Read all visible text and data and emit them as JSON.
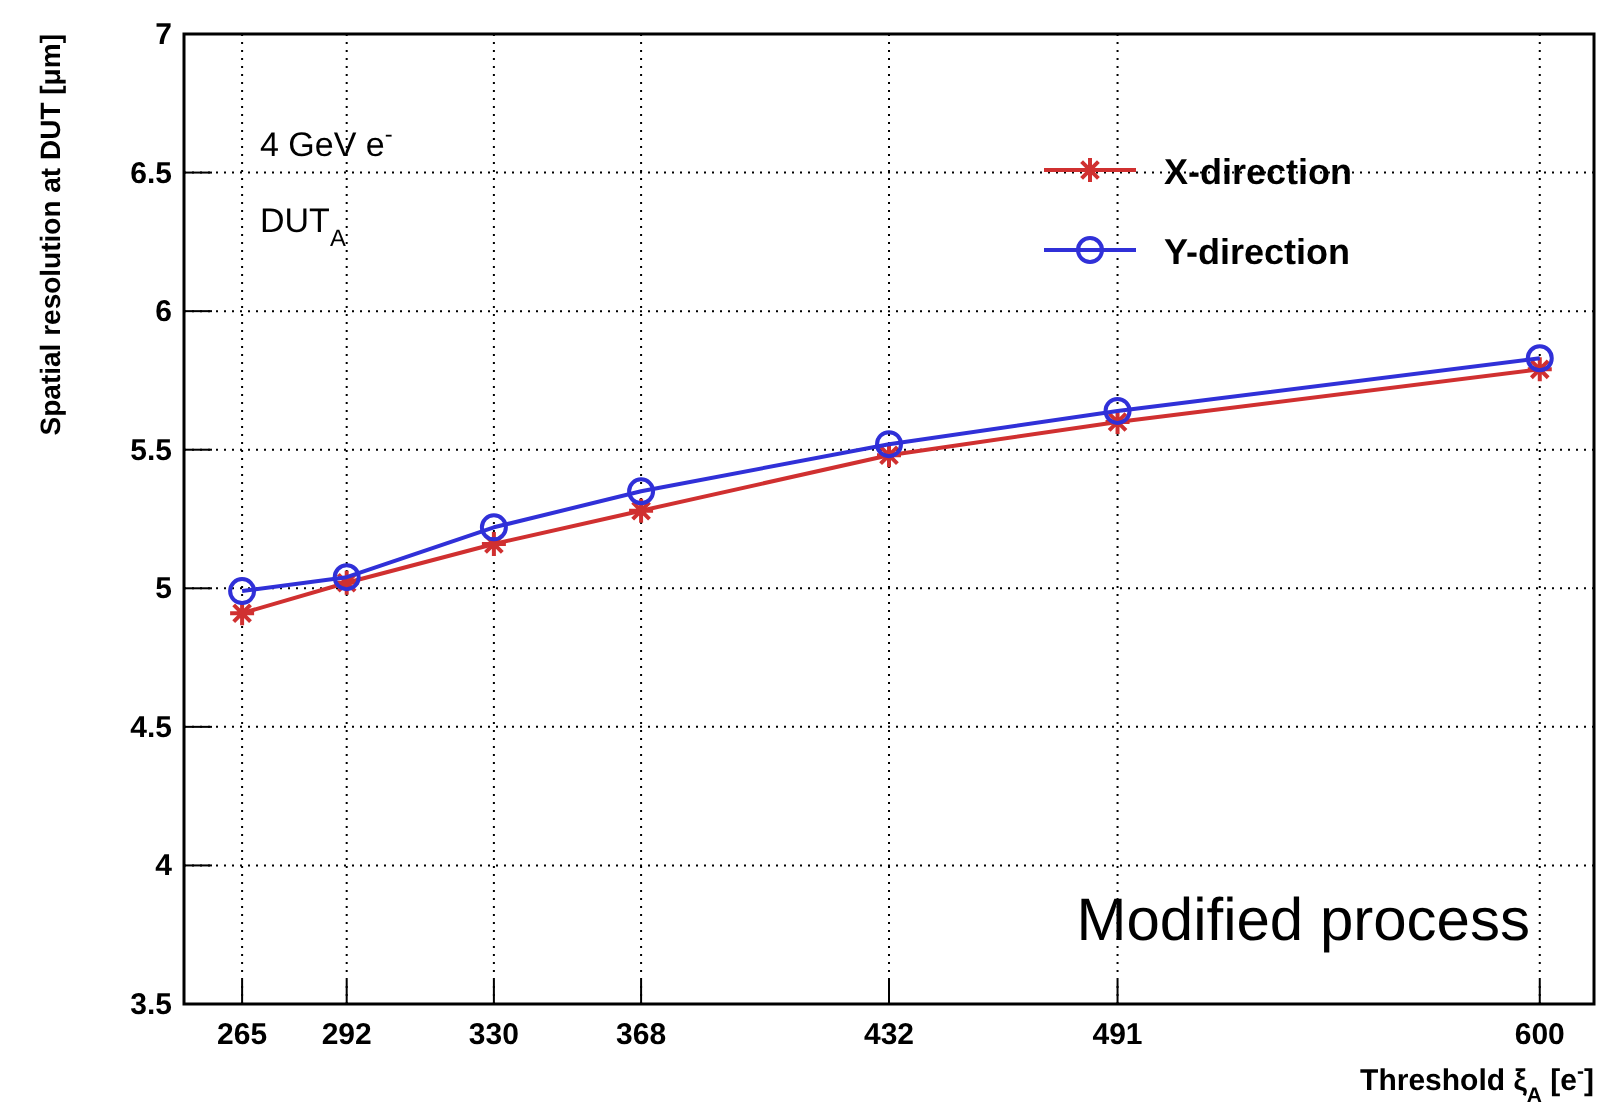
{
  "chart_data": {
    "type": "line",
    "xlabel": "Threshold ξ$_{A}$ [e$^{-}$]",
    "ylabel": "Spatial resolution at DUT [μm]",
    "x": [
      265,
      292,
      330,
      368,
      432,
      491,
      600
    ],
    "xlim": [
      250,
      614
    ],
    "xticks": [
      265,
      292,
      330,
      368,
      432,
      491,
      600
    ],
    "ylim": [
      3.5,
      7
    ],
    "yticks": [
      3.5,
      4,
      4.5,
      5,
      5.5,
      6,
      6.5,
      7
    ],
    "grid": true,
    "legend": "top right",
    "line_style": "solid",
    "series": [
      {
        "name": "X-direction",
        "color": "#d03030",
        "marker": "cross",
        "values": [
          4.91,
          5.02,
          5.16,
          5.28,
          5.48,
          5.6,
          5.79
        ]
      },
      {
        "name": "Y-direction",
        "color": "#3030d8",
        "marker": "circle",
        "values": [
          4.99,
          5.04,
          5.22,
          5.35,
          5.52,
          5.64,
          5.83
        ]
      }
    ],
    "annotations": [
      "4 GeV e$^{-}$",
      "DUT$_{A}$",
      "Modified process"
    ]
  }
}
